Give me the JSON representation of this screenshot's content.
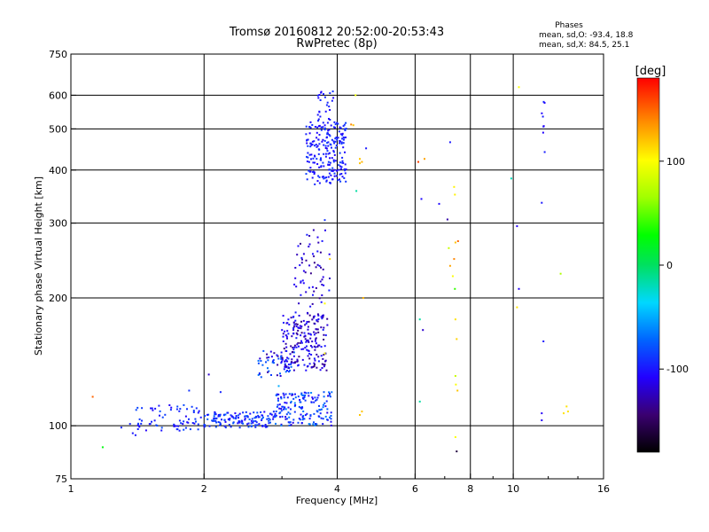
{
  "chart_data": {
    "type": "scatter",
    "title": "Tromsø 20160812 20:52:00-20:53:43",
    "subtitle": "RwPretec (8p)",
    "stats": {
      "heading": "Phases",
      "line_o": "mean, sd,O: -93.4, 18.8",
      "line_x": "mean, sd,X:  84.5, 25.1"
    },
    "xlabel": "Frequency [MHz]",
    "ylabel": "Stationary phase Virtual Height [km]",
    "x_scale": "log",
    "y_scale": "log",
    "xlim": [
      1,
      16
    ],
    "ylim": [
      75,
      750
    ],
    "x_ticks": [
      1,
      2,
      4,
      6,
      8,
      10,
      16
    ],
    "x_tick_labels": [
      "1",
      "2",
      "4",
      "6",
      "8",
      "10",
      "16"
    ],
    "y_ticks": [
      75,
      100,
      200,
      300,
      400,
      500,
      600,
      750
    ],
    "y_tick_labels": [
      "75",
      "100",
      "200",
      "300",
      "400",
      "500",
      "600",
      "750"
    ],
    "x_grid": [
      2,
      4,
      6,
      8,
      10
    ],
    "y_grid": [
      100,
      200,
      300,
      400,
      500,
      600
    ],
    "colorbar": {
      "label": "[deg]",
      "range": [
        -180,
        180
      ],
      "ticks": [
        100,
        0,
        -100
      ],
      "tick_labels": [
        "100",
        "0",
        "-100"
      ]
    },
    "clusters": [
      {
        "f": [
          1.4,
          2.0
        ],
        "h": [
          97,
          112
        ],
        "phase": [
          -110,
          -80
        ],
        "n": 70
      },
      {
        "f": [
          2.0,
          2.9
        ],
        "h": [
          99,
          108
        ],
        "phase": [
          -110,
          -70
        ],
        "n": 140
      },
      {
        "f": [
          2.9,
          3.9
        ],
        "h": [
          100,
          120
        ],
        "phase": [
          -115,
          -60
        ],
        "n": 160
      },
      {
        "f": [
          2.65,
          3.2
        ],
        "h": [
          130,
          150
        ],
        "phase": [
          -135,
          -65
        ],
        "n": 60
      },
      {
        "f": [
          3.0,
          3.8
        ],
        "h": [
          135,
          185
        ],
        "phase": [
          -140,
          -95
        ],
        "n": 200
      },
      {
        "f": [
          3.2,
          3.85
        ],
        "h": [
          190,
          290
        ],
        "phase": [
          -140,
          -95
        ],
        "n": 60
      },
      {
        "f": [
          3.4,
          4.2
        ],
        "h": [
          370,
          520
        ],
        "phase": [
          -110,
          -85
        ],
        "n": 220
      },
      {
        "f": [
          3.6,
          4.0
        ],
        "h": [
          520,
          615
        ],
        "phase": [
          -110,
          -90
        ],
        "n": 25
      },
      {
        "f": [
          11.6,
          11.8
        ],
        "h": [
          440,
          620
        ],
        "phase": [
          -110,
          -95
        ],
        "n": 8
      }
    ],
    "points": [
      {
        "f": 1.12,
        "h": 117,
        "phase": 150
      },
      {
        "f": 1.18,
        "h": 89,
        "phase": 25
      },
      {
        "f": 1.3,
        "h": 99,
        "phase": -95
      },
      {
        "f": 1.36,
        "h": 101,
        "phase": -95
      },
      {
        "f": 1.38,
        "h": 96,
        "phase": -100
      },
      {
        "f": 1.4,
        "h": 95,
        "phase": -100
      },
      {
        "f": 1.85,
        "h": 121,
        "phase": -90
      },
      {
        "f": 2.05,
        "h": 132,
        "phase": -120
      },
      {
        "f": 2.18,
        "h": 120,
        "phase": -95
      },
      {
        "f": 2.95,
        "h": 124,
        "phase": -50
      },
      {
        "f": 3.2,
        "h": 215,
        "phase": -110
      },
      {
        "f": 3.75,
        "h": 194,
        "phase": 100
      },
      {
        "f": 3.75,
        "h": 148,
        "phase": 100
      },
      {
        "f": 3.75,
        "h": 305,
        "phase": -90
      },
      {
        "f": 3.85,
        "h": 247,
        "phase": 115
      },
      {
        "f": 4.3,
        "h": 512,
        "phase": 140
      },
      {
        "f": 4.35,
        "h": 510,
        "phase": 120
      },
      {
        "f": 4.4,
        "h": 600,
        "phase": 95
      },
      {
        "f": 4.42,
        "h": 357,
        "phase": -15
      },
      {
        "f": 4.5,
        "h": 425,
        "phase": 120
      },
      {
        "f": 4.5,
        "h": 415,
        "phase": 120
      },
      {
        "f": 4.55,
        "h": 418,
        "phase": 125
      },
      {
        "f": 4.58,
        "h": 200,
        "phase": 125
      },
      {
        "f": 4.65,
        "h": 450,
        "phase": -100
      },
      {
        "f": 4.5,
        "h": 106,
        "phase": 120
      },
      {
        "f": 4.55,
        "h": 108,
        "phase": 120
      },
      {
        "f": 6.1,
        "h": 418,
        "phase": 160
      },
      {
        "f": 6.2,
        "h": 342,
        "phase": -105
      },
      {
        "f": 6.3,
        "h": 425,
        "phase": 130
      },
      {
        "f": 6.15,
        "h": 178,
        "phase": -15
      },
      {
        "f": 6.15,
        "h": 114,
        "phase": -15
      },
      {
        "f": 6.25,
        "h": 168,
        "phase": -120
      },
      {
        "f": 6.8,
        "h": 333,
        "phase": -105
      },
      {
        "f": 7.1,
        "h": 306,
        "phase": -130
      },
      {
        "f": 7.2,
        "h": 465,
        "phase": -100
      },
      {
        "f": 7.15,
        "h": 262,
        "phase": 80
      },
      {
        "f": 7.2,
        "h": 238,
        "phase": 130
      },
      {
        "f": 7.3,
        "h": 225,
        "phase": 100
      },
      {
        "f": 7.35,
        "h": 365,
        "phase": 105
      },
      {
        "f": 7.38,
        "h": 350,
        "phase": 105
      },
      {
        "f": 7.4,
        "h": 270,
        "phase": 120
      },
      {
        "f": 7.5,
        "h": 272,
        "phase": 150
      },
      {
        "f": 7.35,
        "h": 247,
        "phase": 140
      },
      {
        "f": 7.38,
        "h": 210,
        "phase": 40
      },
      {
        "f": 7.4,
        "h": 178,
        "phase": 110
      },
      {
        "f": 7.45,
        "h": 160,
        "phase": 115
      },
      {
        "f": 7.4,
        "h": 131,
        "phase": 80
      },
      {
        "f": 7.42,
        "h": 125,
        "phase": 100
      },
      {
        "f": 7.48,
        "h": 121,
        "phase": 120
      },
      {
        "f": 7.4,
        "h": 94,
        "phase": 100
      },
      {
        "f": 7.45,
        "h": 87,
        "phase": -160
      },
      {
        "f": 9.9,
        "h": 382,
        "phase": -20
      },
      {
        "f": 10.2,
        "h": 295,
        "phase": -110
      },
      {
        "f": 10.3,
        "h": 210,
        "phase": -110
      },
      {
        "f": 10.2,
        "h": 190,
        "phase": 110
      },
      {
        "f": 10.3,
        "h": 627,
        "phase": 100
      },
      {
        "f": 11.6,
        "h": 335,
        "phase": -100
      },
      {
        "f": 11.7,
        "h": 158,
        "phase": -100
      },
      {
        "f": 11.6,
        "h": 107,
        "phase": -110
      },
      {
        "f": 11.6,
        "h": 103,
        "phase": -110
      },
      {
        "f": 12.8,
        "h": 228,
        "phase": 70
      },
      {
        "f": 13.0,
        "h": 107,
        "phase": 110
      },
      {
        "f": 13.3,
        "h": 108,
        "phase": 110
      },
      {
        "f": 13.2,
        "h": 111,
        "phase": 110
      }
    ]
  }
}
